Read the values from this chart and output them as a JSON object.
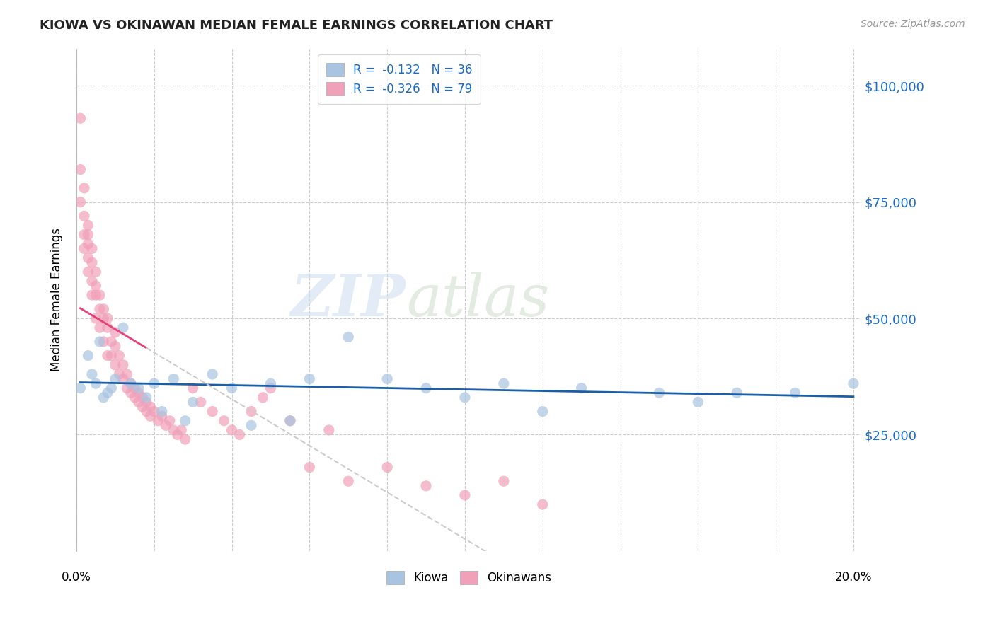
{
  "title": "KIOWA VS OKINAWAN MEDIAN FEMALE EARNINGS CORRELATION CHART",
  "source": "Source: ZipAtlas.com",
  "ylabel": "Median Female Earnings",
  "yticks": [
    25000,
    50000,
    75000,
    100000
  ],
  "ytick_labels": [
    "$25,000",
    "$50,000",
    "$75,000",
    "$100,000"
  ],
  "watermark_zip": "ZIP",
  "watermark_atlas": "atlas",
  "legend_entries": [
    {
      "label": "Kiowa",
      "R": "-0.132",
      "N": "36",
      "color": "#a8c4e0"
    },
    {
      "label": "Okinawans",
      "R": "-0.326",
      "N": "79",
      "color": "#f4a0b0"
    }
  ],
  "kiowa_x": [
    0.001,
    0.003,
    0.004,
    0.005,
    0.006,
    0.007,
    0.008,
    0.009,
    0.01,
    0.012,
    0.014,
    0.016,
    0.018,
    0.02,
    0.022,
    0.025,
    0.028,
    0.03,
    0.035,
    0.04,
    0.045,
    0.05,
    0.055,
    0.06,
    0.07,
    0.08,
    0.09,
    0.1,
    0.11,
    0.12,
    0.13,
    0.15,
    0.16,
    0.17,
    0.185,
    0.2
  ],
  "kiowa_y": [
    35000,
    42000,
    38000,
    36000,
    45000,
    33000,
    34000,
    35000,
    37000,
    48000,
    36000,
    35000,
    33000,
    36000,
    30000,
    37000,
    28000,
    32000,
    38000,
    35000,
    27000,
    36000,
    28000,
    37000,
    46000,
    37000,
    35000,
    33000,
    36000,
    30000,
    35000,
    34000,
    32000,
    34000,
    34000,
    36000
  ],
  "okinawan_x": [
    0.001,
    0.001,
    0.001,
    0.002,
    0.002,
    0.002,
    0.002,
    0.003,
    0.003,
    0.003,
    0.003,
    0.003,
    0.004,
    0.004,
    0.004,
    0.004,
    0.005,
    0.005,
    0.005,
    0.005,
    0.006,
    0.006,
    0.006,
    0.007,
    0.007,
    0.007,
    0.008,
    0.008,
    0.008,
    0.009,
    0.009,
    0.01,
    0.01,
    0.01,
    0.011,
    0.011,
    0.012,
    0.012,
    0.013,
    0.013,
    0.014,
    0.014,
    0.015,
    0.015,
    0.016,
    0.016,
    0.017,
    0.017,
    0.018,
    0.018,
    0.019,
    0.019,
    0.02,
    0.021,
    0.022,
    0.023,
    0.024,
    0.025,
    0.026,
    0.027,
    0.028,
    0.03,
    0.032,
    0.035,
    0.038,
    0.04,
    0.042,
    0.045,
    0.048,
    0.05,
    0.055,
    0.06,
    0.065,
    0.07,
    0.08,
    0.09,
    0.1,
    0.11,
    0.12
  ],
  "okinawan_y": [
    93000,
    82000,
    75000,
    78000,
    72000,
    68000,
    65000,
    70000,
    66000,
    63000,
    68000,
    60000,
    65000,
    62000,
    58000,
    55000,
    60000,
    57000,
    55000,
    50000,
    52000,
    55000,
    48000,
    50000,
    52000,
    45000,
    48000,
    50000,
    42000,
    45000,
    42000,
    47000,
    44000,
    40000,
    42000,
    38000,
    40000,
    37000,
    38000,
    35000,
    36000,
    34000,
    35000,
    33000,
    34000,
    32000,
    33000,
    31000,
    32000,
    30000,
    31000,
    29000,
    30000,
    28000,
    29000,
    27000,
    28000,
    26000,
    25000,
    26000,
    24000,
    35000,
    32000,
    30000,
    28000,
    26000,
    25000,
    30000,
    33000,
    35000,
    28000,
    18000,
    26000,
    15000,
    18000,
    14000,
    12000,
    15000,
    10000
  ],
  "bg_color": "#ffffff",
  "grid_color": "#cccccc",
  "kiowa_dot_color": "#a8c4e0",
  "okinawan_dot_color": "#f0a0b8",
  "kiowa_line_color": "#1a5fa8",
  "okinawan_line_color": "#e8407a",
  "trend_extend_color": "#cccccc",
  "dot_size": 120,
  "dot_alpha": 0.7,
  "xlim": [
    0.0,
    0.202
  ],
  "ylim": [
    0,
    108000
  ]
}
